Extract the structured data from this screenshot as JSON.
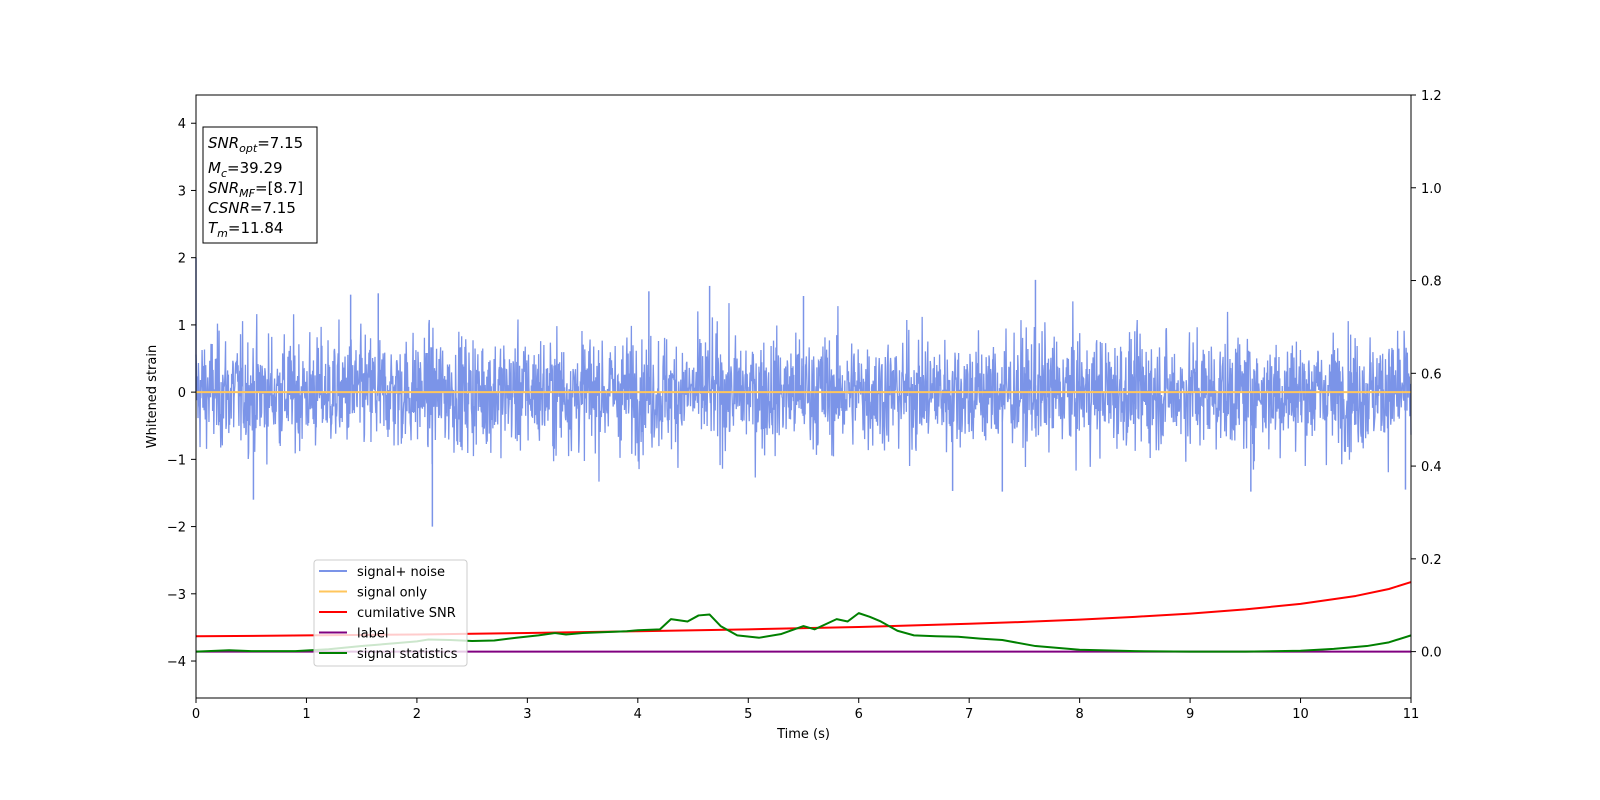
{
  "chart_data": {
    "type": "line",
    "xlabel": "Time (s)",
    "ylabel": "Whitened strain",
    "xlim": [
      0,
      11
    ],
    "ylim": [
      -4.55,
      4.42
    ],
    "y2lim": [
      -0.1,
      1.2
    ],
    "x_ticks": [
      "0",
      "1",
      "2",
      "3",
      "4",
      "5",
      "6",
      "7",
      "8",
      "9",
      "10",
      "11"
    ],
    "y_ticks": [
      "4",
      "3",
      "2",
      "1",
      "0",
      "−1",
      "−2",
      "−3",
      "−4"
    ],
    "y2_ticks": [
      "1.2",
      "1.0",
      "0.8",
      "0.6",
      "0.4",
      "0.2",
      "0.0"
    ],
    "grid": false,
    "legend_placement": "lower-left",
    "stats_box": [
      {
        "main": "SNR",
        "sub": "opt",
        "value": "=7.15"
      },
      {
        "main": "M",
        "sub": "c",
        "value": "=39.29"
      },
      {
        "main": "SNR",
        "sub": "MF",
        "value": "=[8.7]"
      },
      {
        "main": "CSNR",
        "sub": "",
        "value": "=7.15"
      },
      {
        "main": "T",
        "sub": "m",
        "value": "=11.84"
      }
    ],
    "series": [
      {
        "name": "signal+ noise",
        "color": "#7b94e8",
        "axis": "left",
        "kind": "noise",
        "amplitude_typical": 1.0,
        "peaks": [
          [
            0.0,
            2.0
          ],
          [
            0.52,
            -1.6
          ],
          [
            1.4,
            1.45
          ],
          [
            1.65,
            1.47
          ],
          [
            2.14,
            -2.0
          ],
          [
            4.1,
            1.5
          ],
          [
            4.65,
            1.58
          ],
          [
            5.5,
            1.43
          ],
          [
            6.85,
            -1.47
          ],
          [
            7.3,
            -1.48
          ],
          [
            7.6,
            1.67
          ],
          [
            9.55,
            -1.48
          ],
          [
            10.95,
            -1.45
          ]
        ]
      },
      {
        "name": "signal only",
        "color": "#ffc65c",
        "axis": "left",
        "x": [
          0,
          11
        ],
        "y": [
          0,
          0
        ]
      },
      {
        "name": "cumilative SNR",
        "color": "#ff0000",
        "axis": "right",
        "x": [
          0,
          1,
          2,
          3,
          4,
          5,
          6,
          7,
          7.5,
          8,
          8.5,
          9,
          9.5,
          10,
          10.5,
          10.8,
          11
        ],
        "y": [
          0.033,
          0.035,
          0.037,
          0.04,
          0.044,
          0.048,
          0.053,
          0.06,
          0.064,
          0.069,
          0.075,
          0.082,
          0.091,
          0.103,
          0.12,
          0.135,
          0.15
        ]
      },
      {
        "name": "label",
        "color": "#800080",
        "axis": "right",
        "x": [
          0,
          11
        ],
        "y": [
          0,
          0
        ]
      },
      {
        "name": "signal statistics",
        "color": "#008000",
        "axis": "right",
        "x": [
          0,
          0.3,
          0.5,
          0.9,
          1.2,
          1.5,
          1.8,
          2.0,
          2.1,
          2.3,
          2.5,
          2.7,
          2.9,
          3.1,
          3.25,
          3.35,
          3.5,
          3.7,
          3.9,
          4.0,
          4.2,
          4.3,
          4.45,
          4.55,
          4.65,
          4.75,
          4.9,
          5.1,
          5.3,
          5.5,
          5.6,
          5.8,
          5.9,
          6.0,
          6.1,
          6.2,
          6.35,
          6.5,
          6.7,
          6.9,
          7.1,
          7.3,
          7.6,
          8.0,
          8.5,
          9.0,
          9.5,
          10.0,
          10.3,
          10.6,
          10.8,
          11.0
        ],
        "y": [
          0.0,
          0.003,
          0.001,
          0.001,
          0.005,
          0.012,
          0.018,
          0.022,
          0.026,
          0.025,
          0.023,
          0.024,
          0.03,
          0.035,
          0.04,
          0.037,
          0.04,
          0.042,
          0.044,
          0.046,
          0.048,
          0.07,
          0.065,
          0.078,
          0.08,
          0.055,
          0.035,
          0.03,
          0.038,
          0.055,
          0.048,
          0.07,
          0.065,
          0.083,
          0.075,
          0.065,
          0.045,
          0.035,
          0.033,
          0.032,
          0.028,
          0.025,
          0.012,
          0.004,
          0.001,
          0.0,
          0.0,
          0.002,
          0.006,
          0.012,
          0.02,
          0.035
        ]
      }
    ]
  }
}
